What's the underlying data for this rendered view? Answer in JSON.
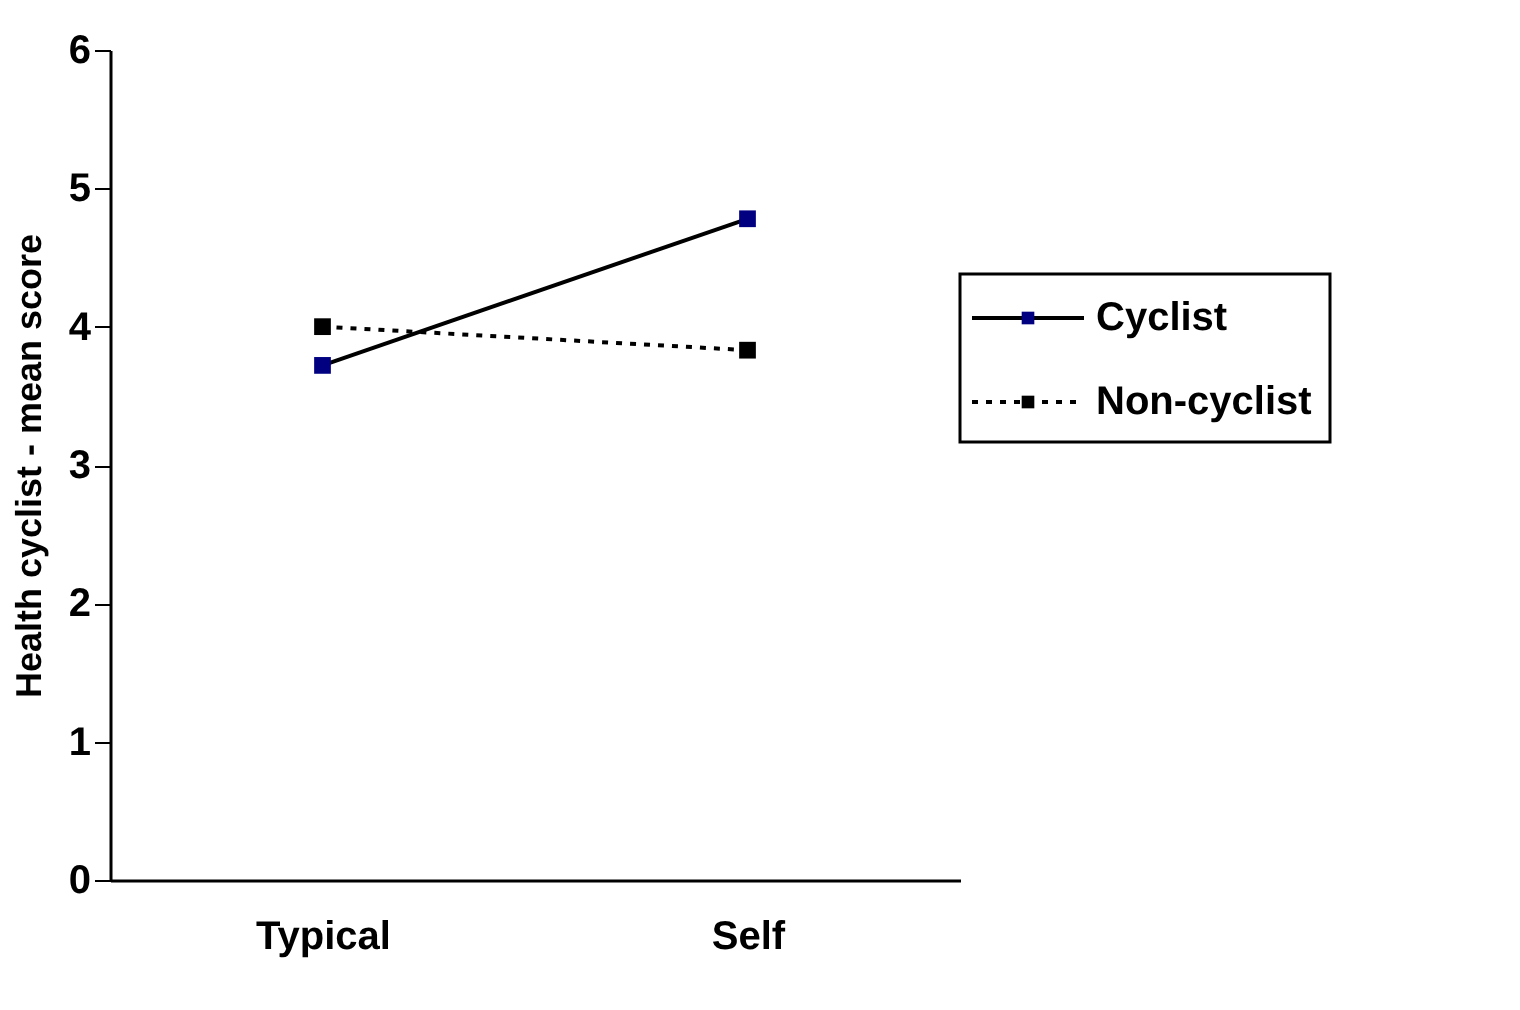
{
  "chart_data": {
    "type": "line",
    "ylabel": "Health cyclist - mean score",
    "categories": [
      "Typical",
      "Self"
    ],
    "series": [
      {
        "name": "Cyclist",
        "color": "#000080",
        "values": [
          3.72,
          4.78
        ],
        "line_style": "solid"
      },
      {
        "name": "Non-cyclist",
        "color": "#000000",
        "values": [
          4.0,
          3.83
        ],
        "line_style": "dotted"
      }
    ],
    "ylim": [
      0,
      6
    ],
    "yticks": [
      0,
      1,
      2,
      3,
      4,
      5,
      6
    ],
    "grid": false,
    "legend": "right",
    "marker": "square"
  }
}
